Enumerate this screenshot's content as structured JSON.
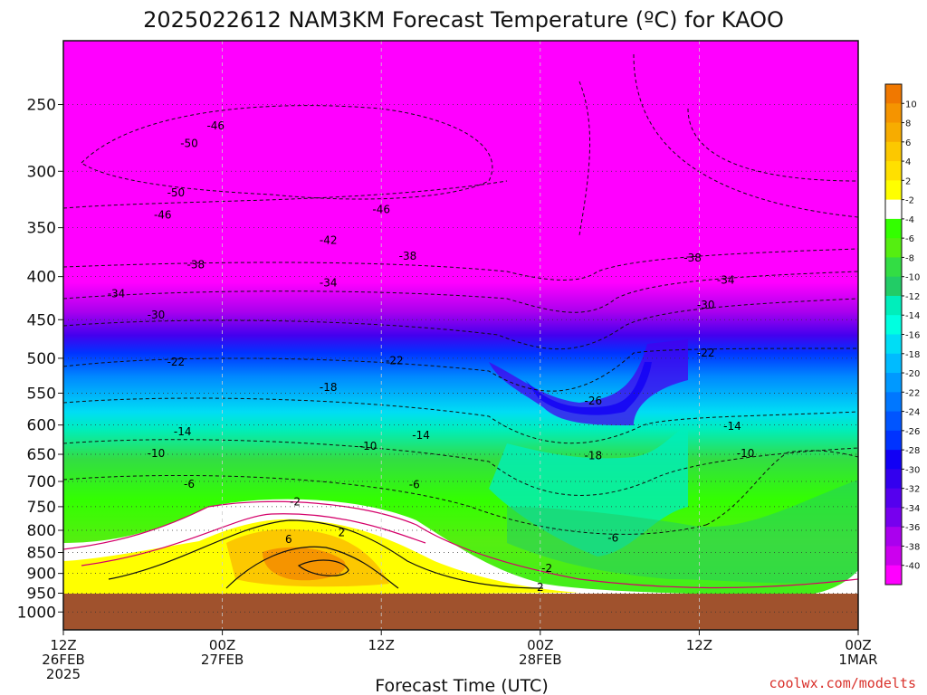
{
  "title": "2025022612 NAM3KM Forecast Temperature (ºC) for KAOO",
  "credit": "coolwx.com/modelts",
  "chart_data": {
    "type": "heatmap",
    "title": "2025022612 NAM3KM Forecast Temperature (ºC) for KAOO",
    "xlabel": "Forecast Time (UTC)",
    "ylabel": "",
    "x_hours_range": [
      0,
      60
    ],
    "y_pressure_range": [
      210,
      1050
    ],
    "y_scale": "log",
    "y_ticks": [
      250,
      300,
      350,
      400,
      450,
      500,
      550,
      600,
      650,
      700,
      750,
      800,
      850,
      900,
      950,
      1000
    ],
    "x_ticks": [
      {
        "hour": 0,
        "lines": [
          "12Z",
          "26FEB",
          "2025"
        ]
      },
      {
        "hour": 12,
        "lines": [
          "00Z",
          "27FEB"
        ]
      },
      {
        "hour": 24,
        "lines": [
          "12Z"
        ]
      },
      {
        "hour": 36,
        "lines": [
          "00Z",
          "28FEB"
        ]
      },
      {
        "hour": 48,
        "lines": [
          "12Z"
        ]
      },
      {
        "hour": 60,
        "lines": [
          "00Z",
          "1MAR"
        ]
      }
    ],
    "grid": true,
    "underground_pressure": 955,
    "colorbar": {
      "levels": [
        10,
        8,
        6,
        4,
        2,
        -2,
        -4,
        -6,
        -8,
        -10,
        -12,
        -14,
        -16,
        -18,
        -20,
        -22,
        -24,
        -26,
        -28,
        -30,
        -32,
        -34,
        -36,
        -38,
        -40
      ],
      "colors": [
        "#f07800",
        "#f59400",
        "#f7ac00",
        "#fcc800",
        "#ffe000",
        "#ffff00",
        "#ffffff",
        "#33ff00",
        "#55ee11",
        "#33dd44",
        "#22cc66",
        "#00eebb",
        "#00ffe0",
        "#00ddf5",
        "#00bbff",
        "#0099ff",
        "#0077ff",
        "#0055ff",
        "#0033ff",
        "#1100f5",
        "#3300ee",
        "#5500ee",
        "#7700ee",
        "#aa00ee",
        "#cc00ee",
        "#ff00ff"
      ]
    },
    "contour_labels": [
      {
        "text": "-46",
        "hour": 11.5,
        "p": 265
      },
      {
        "text": "-50",
        "hour": 9.5,
        "p": 278
      },
      {
        "text": "-50",
        "hour": 8.5,
        "p": 318
      },
      {
        "text": "-46",
        "hour": 7.5,
        "p": 338
      },
      {
        "text": "-46",
        "hour": 24,
        "p": 333
      },
      {
        "text": "-42",
        "hour": 20,
        "p": 362
      },
      {
        "text": "-38",
        "hour": 10,
        "p": 387
      },
      {
        "text": "-38",
        "hour": 26,
        "p": 378
      },
      {
        "text": "-38",
        "hour": 47.5,
        "p": 380
      },
      {
        "text": "-34",
        "hour": 4,
        "p": 419
      },
      {
        "text": "-34",
        "hour": 20,
        "p": 407
      },
      {
        "text": "-34",
        "hour": 50,
        "p": 404
      },
      {
        "text": "-30",
        "hour": 7,
        "p": 444
      },
      {
        "text": "-30",
        "hour": 48.5,
        "p": 432
      },
      {
        "text": "-22",
        "hour": 8.5,
        "p": 505
      },
      {
        "text": "-22",
        "hour": 25,
        "p": 503
      },
      {
        "text": "-22",
        "hour": 48.5,
        "p": 493
      },
      {
        "text": "-18",
        "hour": 20,
        "p": 541
      },
      {
        "text": "-26",
        "hour": 40,
        "p": 562
      },
      {
        "text": "-14",
        "hour": 9,
        "p": 611
      },
      {
        "text": "-14",
        "hour": 27,
        "p": 617
      },
      {
        "text": "-14",
        "hour": 50.5,
        "p": 602
      },
      {
        "text": "-18",
        "hour": 40,
        "p": 652
      },
      {
        "text": "-10",
        "hour": 7,
        "p": 648
      },
      {
        "text": "-10",
        "hour": 23,
        "p": 636
      },
      {
        "text": "-10",
        "hour": 51.5,
        "p": 648
      },
      {
        "text": "-6",
        "hour": 9.5,
        "p": 705
      },
      {
        "text": "-6",
        "hour": 26.5,
        "p": 706
      },
      {
        "text": "-6",
        "hour": 41.5,
        "p": 817
      },
      {
        "text": "-2",
        "hour": 17.5,
        "p": 740
      },
      {
        "text": "2",
        "hour": 21,
        "p": 805
      },
      {
        "text": "6",
        "hour": 17,
        "p": 820
      },
      {
        "text": "-2",
        "hour": 36.5,
        "p": 888
      },
      {
        "text": "2",
        "hour": 36,
        "p": 935
      }
    ]
  }
}
